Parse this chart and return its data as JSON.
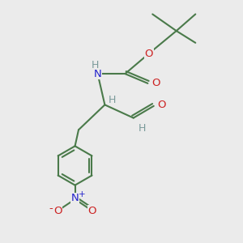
{
  "bg_color": "#ebebeb",
  "bond_color": "#4a7a4a",
  "bond_width": 1.5,
  "n_color": "#2222cc",
  "o_color": "#cc2222",
  "h_color": "#7a9a9a",
  "text_fontsize": 9.5,
  "figsize": [
    3.0,
    3.0
  ],
  "dpi": 100,
  "xlim": [
    0,
    10
  ],
  "ylim": [
    0,
    10
  ]
}
